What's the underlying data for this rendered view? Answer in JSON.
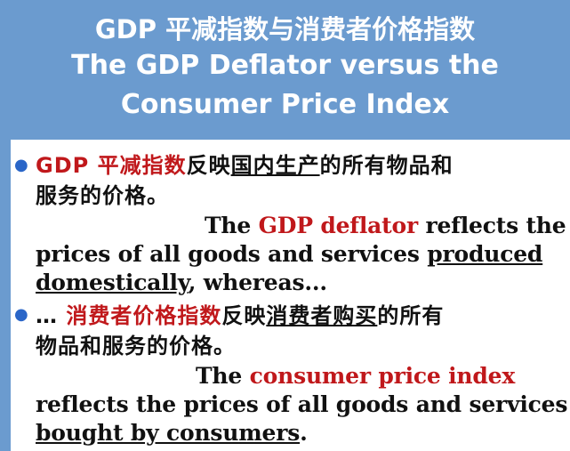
{
  "title": {
    "zh": "GDP 平减指数与消费者价格指数",
    "en_line1": "The GDP Deflator versus the",
    "en_line2": "Consumer Price Index"
  },
  "bullet1": {
    "zh_term": "GDP 平减指数",
    "zh_text1": "反映",
    "zh_underlined": "国内生产",
    "zh_text2": "的所有物品和",
    "zh_line2": "服务的价格。",
    "en_the": "The ",
    "en_term": "GDP deflator",
    "en_text1": " reflects the",
    "en_text2": "prices of all goods and services ",
    "en_underlined1": "produced",
    "en_underlined2": "domestically",
    "en_text3": ", whereas..."
  },
  "bullet2": {
    "zh_prefix": "… ",
    "zh_term": "消费者价格指数",
    "zh_text1": "反映",
    "zh_underlined": "消费者购买",
    "zh_text2": "的所有",
    "zh_line2": "物品和服务的价格。",
    "en_the": "The ",
    "en_term": "consumer price index",
    "en_text1": "reflects the prices of all goods and services",
    "en_underlined": "bought by consumers",
    "en_text2": "."
  }
}
